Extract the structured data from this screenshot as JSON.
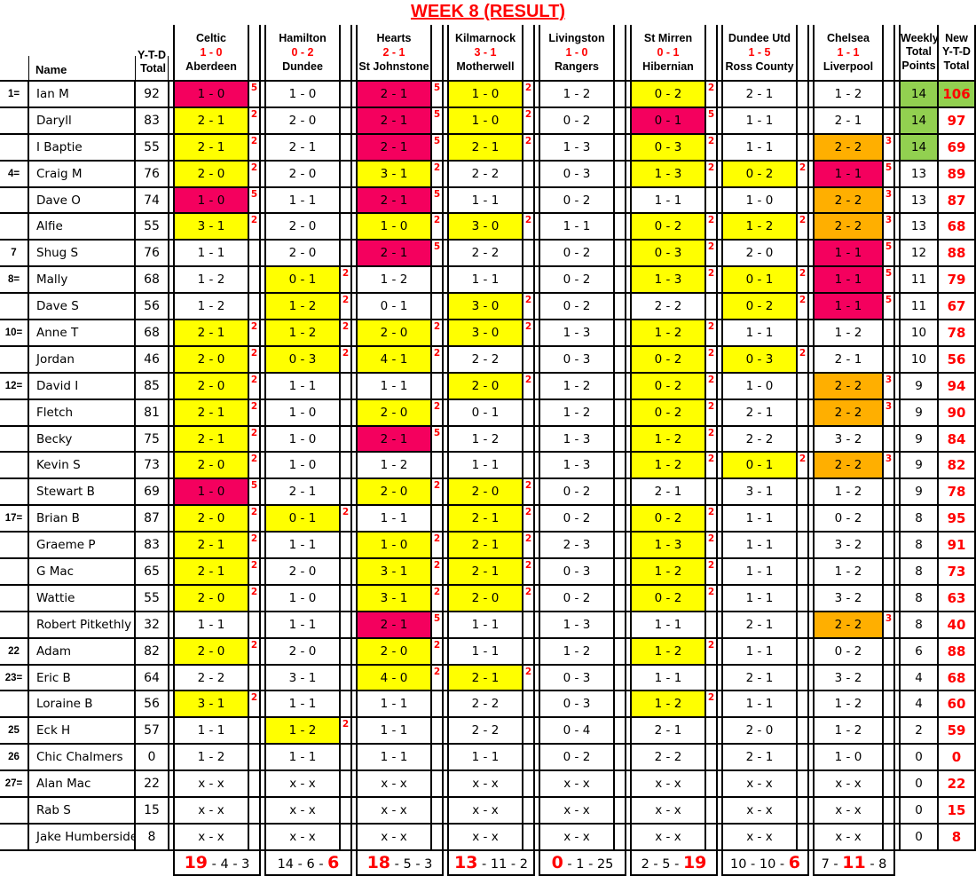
{
  "title": "WEEK 8 (RESULT)",
  "colors": {
    "pink": "#F4005E",
    "yellow": "#FFFF00",
    "orange": "#FFAF00",
    "green": "#92D050",
    "red": "#FF0000",
    "grid": "#000000"
  },
  "points_legend": {
    "exact_score": 5,
    "correct_draw": 3,
    "correct_result": 2
  },
  "header": {
    "name_label": "Name",
    "ytd": [
      "Y-T-D",
      "Total"
    ],
    "weekly": [
      "Weekly",
      "Total",
      "Points"
    ],
    "new_ytd": [
      "New",
      "Y-T-D",
      "Total"
    ]
  },
  "matches": [
    {
      "home": "Celtic",
      "score": "1 - 0",
      "away": "Aberdeen",
      "totals": [
        "19",
        "4",
        "3"
      ],
      "highlight": 0
    },
    {
      "home": "Hamilton",
      "score": "0 - 2",
      "away": "Dundee",
      "totals": [
        "14",
        "6",
        "6"
      ],
      "highlight": 2
    },
    {
      "home": "Hearts",
      "score": "2 - 1",
      "away": "St Johnstone",
      "totals": [
        "18",
        "5",
        "3"
      ],
      "highlight": 0
    },
    {
      "home": "Kilmarnock",
      "score": "3 - 1",
      "away": "Motherwell",
      "totals": [
        "13",
        "11",
        "2"
      ],
      "highlight": 0
    },
    {
      "home": "Livingston",
      "score": "1 - 0",
      "away": "Rangers",
      "totals": [
        "0",
        "1",
        "25"
      ],
      "highlight": 0
    },
    {
      "home": "St Mirren",
      "score": "0 - 1",
      "away": "Hibernian",
      "totals": [
        "2",
        "5",
        "19"
      ],
      "highlight": 2
    },
    {
      "home": "Dundee Utd",
      "score": "1 - 5",
      "away": "Ross County",
      "totals": [
        "10",
        "10",
        "6"
      ],
      "highlight": 2
    },
    {
      "home": "Chelsea",
      "score": "1 - 1",
      "away": "Liverpool",
      "totals": [
        "7",
        "11",
        "8"
      ],
      "highlight": 1
    }
  ],
  "players": [
    {
      "rank": "1=",
      "name": "Ian M",
      "ytd": 92,
      "predictions": [
        [
          "1 - 0",
          "pink",
          5
        ],
        [
          "1 - 0"
        ],
        [
          "2 - 1",
          "pink",
          5
        ],
        [
          "1 - 0",
          "yellow",
          2
        ],
        [
          "1 - 2"
        ],
        [
          "0 - 2",
          "yellow",
          2
        ],
        [
          "2 - 1"
        ],
        [
          "1 - 2"
        ]
      ],
      "weekly": 14,
      "weekly_green": true,
      "new_ytd": 106,
      "new_green": true
    },
    {
      "rank": "",
      "name": "Daryll",
      "ytd": 83,
      "predictions": [
        [
          "2 - 1",
          "yellow",
          2
        ],
        [
          "2 - 0"
        ],
        [
          "2 - 1",
          "pink",
          5
        ],
        [
          "1 - 0",
          "yellow",
          2
        ],
        [
          "0 - 2"
        ],
        [
          "0 - 1",
          "pink",
          5
        ],
        [
          "1 - 1"
        ],
        [
          "2 - 1"
        ]
      ],
      "weekly": 14,
      "weekly_green": true,
      "new_ytd": 97,
      "new_green": false
    },
    {
      "rank": "",
      "name": "I Baptie",
      "ytd": 55,
      "predictions": [
        [
          "2 - 1",
          "yellow",
          2
        ],
        [
          "2 - 1"
        ],
        [
          "2 - 1",
          "pink",
          5
        ],
        [
          "2 - 1",
          "yellow",
          2
        ],
        [
          "1 - 3"
        ],
        [
          "0 - 3",
          "yellow",
          2
        ],
        [
          "1 - 1"
        ],
        [
          "2 - 2",
          "orange",
          3
        ]
      ],
      "weekly": 14,
      "weekly_green": true,
      "new_ytd": 69,
      "new_green": false
    },
    {
      "rank": "4=",
      "name": "Craig M",
      "ytd": 76,
      "predictions": [
        [
          "2 - 0",
          "yellow",
          2
        ],
        [
          "2 - 0"
        ],
        [
          "3 - 1",
          "yellow",
          2
        ],
        [
          "2 - 2"
        ],
        [
          "0 - 3"
        ],
        [
          "1 - 3",
          "yellow",
          2
        ],
        [
          "0 - 2",
          "yellow",
          2
        ],
        [
          "1 - 1",
          "pink",
          5
        ]
      ],
      "weekly": 13,
      "weekly_green": false,
      "new_ytd": 89,
      "new_green": false
    },
    {
      "rank": "",
      "name": "Dave O",
      "ytd": 74,
      "predictions": [
        [
          "1 - 0",
          "pink",
          5
        ],
        [
          "1 - 1"
        ],
        [
          "2 - 1",
          "pink",
          5
        ],
        [
          "1 - 1"
        ],
        [
          "0 - 2"
        ],
        [
          "1 - 1"
        ],
        [
          "1 - 0"
        ],
        [
          "2 - 2",
          "orange",
          3
        ]
      ],
      "weekly": 13,
      "weekly_green": false,
      "new_ytd": 87,
      "new_green": false
    },
    {
      "rank": "",
      "name": "Alfie",
      "ytd": 55,
      "predictions": [
        [
          "3 - 1",
          "yellow",
          2
        ],
        [
          "2 - 0"
        ],
        [
          "1 - 0",
          "yellow",
          2
        ],
        [
          "3 - 0",
          "yellow",
          2
        ],
        [
          "1 - 1"
        ],
        [
          "0 - 2",
          "yellow",
          2
        ],
        [
          "1 - 2",
          "yellow",
          2
        ],
        [
          "2 - 2",
          "orange",
          3
        ]
      ],
      "weekly": 13,
      "weekly_green": false,
      "new_ytd": 68,
      "new_green": false
    },
    {
      "rank": "7",
      "name": "Shug S",
      "ytd": 76,
      "predictions": [
        [
          "1 - 1"
        ],
        [
          "2 - 0"
        ],
        [
          "2 - 1",
          "pink",
          5
        ],
        [
          "2 - 2"
        ],
        [
          "0 - 2"
        ],
        [
          "0 - 3",
          "yellow",
          2
        ],
        [
          "2 - 0"
        ],
        [
          "1 - 1",
          "pink",
          5
        ]
      ],
      "weekly": 12,
      "weekly_green": false,
      "new_ytd": 88,
      "new_green": false
    },
    {
      "rank": "8=",
      "name": "Mally",
      "ytd": 68,
      "predictions": [
        [
          "1 - 2"
        ],
        [
          "0 - 1",
          "yellow",
          2
        ],
        [
          "1 - 2"
        ],
        [
          "1 - 1"
        ],
        [
          "0 - 2"
        ],
        [
          "1 - 3",
          "yellow",
          2
        ],
        [
          "0 - 1",
          "yellow",
          2
        ],
        [
          "1 - 1",
          "pink",
          5
        ]
      ],
      "weekly": 11,
      "weekly_green": false,
      "new_ytd": 79,
      "new_green": false
    },
    {
      "rank": "",
      "name": "Dave S",
      "ytd": 56,
      "predictions": [
        [
          "1 - 2"
        ],
        [
          "1 - 2",
          "yellow",
          2
        ],
        [
          "0 - 1"
        ],
        [
          "3 - 0",
          "yellow",
          2
        ],
        [
          "0 - 2"
        ],
        [
          "2 - 2"
        ],
        [
          "0 - 2",
          "yellow",
          2
        ],
        [
          "1 - 1",
          "pink",
          5
        ]
      ],
      "weekly": 11,
      "weekly_green": false,
      "new_ytd": 67,
      "new_green": false
    },
    {
      "rank": "10=",
      "name": "Anne T",
      "ytd": 68,
      "predictions": [
        [
          "2 - 1",
          "yellow",
          2
        ],
        [
          "1 - 2",
          "yellow",
          2
        ],
        [
          "2 - 0",
          "yellow",
          2
        ],
        [
          "3 - 0",
          "yellow",
          2
        ],
        [
          "1 - 3"
        ],
        [
          "1 - 2",
          "yellow",
          2
        ],
        [
          "1 - 1"
        ],
        [
          "1 - 2"
        ]
      ],
      "weekly": 10,
      "weekly_green": false,
      "new_ytd": 78,
      "new_green": false
    },
    {
      "rank": "",
      "name": "Jordan",
      "ytd": 46,
      "predictions": [
        [
          "2 - 0",
          "yellow",
          2
        ],
        [
          "0 - 3",
          "yellow",
          2
        ],
        [
          "4 - 1",
          "yellow",
          2
        ],
        [
          "2 - 2"
        ],
        [
          "0 - 3"
        ],
        [
          "0 - 2",
          "yellow",
          2
        ],
        [
          "0 - 3",
          "yellow",
          2
        ],
        [
          "2 - 1"
        ]
      ],
      "weekly": 10,
      "weekly_green": false,
      "new_ytd": 56,
      "new_green": false
    },
    {
      "rank": "12=",
      "name": "David I",
      "ytd": 85,
      "predictions": [
        [
          "2 - 0",
          "yellow",
          2
        ],
        [
          "1 - 1"
        ],
        [
          "1 - 1"
        ],
        [
          "2 - 0",
          "yellow",
          2
        ],
        [
          "1 - 2"
        ],
        [
          "0 - 2",
          "yellow",
          2
        ],
        [
          "1 - 0"
        ],
        [
          "2 - 2",
          "orange",
          3
        ]
      ],
      "weekly": 9,
      "weekly_green": false,
      "new_ytd": 94,
      "new_green": false
    },
    {
      "rank": "",
      "name": "Fletch",
      "ytd": 81,
      "predictions": [
        [
          "2 - 1",
          "yellow",
          2
        ],
        [
          "1 - 0"
        ],
        [
          "2 - 0",
          "yellow",
          2
        ],
        [
          "0 - 1"
        ],
        [
          "1 - 2"
        ],
        [
          "0 - 2",
          "yellow",
          2
        ],
        [
          "2 - 1"
        ],
        [
          "2 - 2",
          "orange",
          3
        ]
      ],
      "weekly": 9,
      "weekly_green": false,
      "new_ytd": 90,
      "new_green": false
    },
    {
      "rank": "",
      "name": "Becky",
      "ytd": 75,
      "predictions": [
        [
          "2 - 1",
          "yellow",
          2
        ],
        [
          "1 - 0"
        ],
        [
          "2 - 1",
          "pink",
          5
        ],
        [
          "1 - 2"
        ],
        [
          "1 - 3"
        ],
        [
          "1 - 2",
          "yellow",
          2
        ],
        [
          "2 - 2"
        ],
        [
          "3 - 2"
        ]
      ],
      "weekly": 9,
      "weekly_green": false,
      "new_ytd": 84,
      "new_green": false
    },
    {
      "rank": "",
      "name": "Kevin S",
      "ytd": 73,
      "predictions": [
        [
          "2 - 0",
          "yellow",
          2
        ],
        [
          "1 - 0"
        ],
        [
          "1 - 2"
        ],
        [
          "1 - 1"
        ],
        [
          "1 - 3"
        ],
        [
          "1 - 2",
          "yellow",
          2
        ],
        [
          "0 - 1",
          "yellow",
          2
        ],
        [
          "2 - 2",
          "orange",
          3
        ]
      ],
      "weekly": 9,
      "weekly_green": false,
      "new_ytd": 82,
      "new_green": false
    },
    {
      "rank": "",
      "name": "Stewart B",
      "ytd": 69,
      "predictions": [
        [
          "1 - 0",
          "pink",
          5
        ],
        [
          "2 - 1"
        ],
        [
          "2 - 0",
          "yellow",
          2
        ],
        [
          "2 - 0",
          "yellow",
          2
        ],
        [
          "0 - 2"
        ],
        [
          "2 - 1"
        ],
        [
          "3 - 1"
        ],
        [
          "1 - 2"
        ]
      ],
      "weekly": 9,
      "weekly_green": false,
      "new_ytd": 78,
      "new_green": false
    },
    {
      "rank": "17=",
      "name": "Brian B",
      "ytd": 87,
      "predictions": [
        [
          "2 - 0",
          "yellow",
          2
        ],
        [
          "0 - 1",
          "yellow",
          2
        ],
        [
          "1 - 1"
        ],
        [
          "2 - 1",
          "yellow",
          2
        ],
        [
          "0 - 2"
        ],
        [
          "0 - 2",
          "yellow",
          2
        ],
        [
          "1 - 1"
        ],
        [
          "0 - 2"
        ]
      ],
      "weekly": 8,
      "weekly_green": false,
      "new_ytd": 95,
      "new_green": false
    },
    {
      "rank": "",
      "name": "Graeme P",
      "ytd": 83,
      "predictions": [
        [
          "2 - 1",
          "yellow",
          2
        ],
        [
          "1 - 1"
        ],
        [
          "1 - 0",
          "yellow",
          2
        ],
        [
          "2 - 1",
          "yellow",
          2
        ],
        [
          "2 - 3"
        ],
        [
          "1 - 3",
          "yellow",
          2
        ],
        [
          "1 - 1"
        ],
        [
          "3 - 2"
        ]
      ],
      "weekly": 8,
      "weekly_green": false,
      "new_ytd": 91,
      "new_green": false
    },
    {
      "rank": "",
      "name": "G Mac",
      "ytd": 65,
      "predictions": [
        [
          "2 - 1",
          "yellow",
          2
        ],
        [
          "2 - 0"
        ],
        [
          "3 - 1",
          "yellow",
          2
        ],
        [
          "2 - 1",
          "yellow",
          2
        ],
        [
          "0 - 3"
        ],
        [
          "1 - 2",
          "yellow",
          2
        ],
        [
          "1 - 1"
        ],
        [
          "1 - 2"
        ]
      ],
      "weekly": 8,
      "weekly_green": false,
      "new_ytd": 73,
      "new_green": false
    },
    {
      "rank": "",
      "name": "Wattie",
      "ytd": 55,
      "predictions": [
        [
          "2 - 0",
          "yellow",
          2
        ],
        [
          "1 - 0"
        ],
        [
          "3 - 1",
          "yellow",
          2
        ],
        [
          "2 - 0",
          "yellow",
          2
        ],
        [
          "0 - 2"
        ],
        [
          "0 - 2",
          "yellow",
          2
        ],
        [
          "1 - 1"
        ],
        [
          "3 - 2"
        ]
      ],
      "weekly": 8,
      "weekly_green": false,
      "new_ytd": 63,
      "new_green": false
    },
    {
      "rank": "",
      "name": "Robert Pitkethly",
      "ytd": 32,
      "predictions": [
        [
          "1 - 1"
        ],
        [
          "1 - 1"
        ],
        [
          "2 - 1",
          "pink",
          5
        ],
        [
          "1 - 1"
        ],
        [
          "1 - 3"
        ],
        [
          "1 - 1"
        ],
        [
          "2 - 1"
        ],
        [
          "2 - 2",
          "orange",
          3
        ]
      ],
      "weekly": 8,
      "weekly_green": false,
      "new_ytd": 40,
      "new_green": false
    },
    {
      "rank": "22",
      "name": "Adam",
      "ytd": 82,
      "predictions": [
        [
          "2 - 0",
          "yellow",
          2
        ],
        [
          "2 - 0"
        ],
        [
          "2 - 0",
          "yellow",
          2
        ],
        [
          "1 - 1"
        ],
        [
          "1 - 2"
        ],
        [
          "1 - 2",
          "yellow",
          2
        ],
        [
          "1 - 1"
        ],
        [
          "0 - 2"
        ]
      ],
      "weekly": 6,
      "weekly_green": false,
      "new_ytd": 88,
      "new_green": false
    },
    {
      "rank": "23=",
      "name": "Eric B",
      "ytd": 64,
      "predictions": [
        [
          "2 - 2"
        ],
        [
          "3 - 1"
        ],
        [
          "4 - 0",
          "yellow",
          2
        ],
        [
          "2 - 1",
          "yellow",
          2
        ],
        [
          "0 - 3"
        ],
        [
          "1 - 1"
        ],
        [
          "2 - 1"
        ],
        [
          "3 - 2"
        ]
      ],
      "weekly": 4,
      "weekly_green": false,
      "new_ytd": 68,
      "new_green": false
    },
    {
      "rank": "",
      "name": "Loraine B",
      "ytd": 56,
      "predictions": [
        [
          "3 - 1",
          "yellow",
          2
        ],
        [
          "1 - 1"
        ],
        [
          "1 - 1"
        ],
        [
          "2 - 2"
        ],
        [
          "0 - 3"
        ],
        [
          "1 - 2",
          "yellow",
          2
        ],
        [
          "1 - 1"
        ],
        [
          "1 - 2"
        ]
      ],
      "weekly": 4,
      "weekly_green": false,
      "new_ytd": 60,
      "new_green": false
    },
    {
      "rank": "25",
      "name": "Eck H",
      "ytd": 57,
      "predictions": [
        [
          "1 - 1"
        ],
        [
          "1 - 2",
          "yellow",
          2
        ],
        [
          "1 - 1"
        ],
        [
          "2 - 2"
        ],
        [
          "0 - 4"
        ],
        [
          "2 - 1"
        ],
        [
          "2 - 0"
        ],
        [
          "1 - 2"
        ]
      ],
      "weekly": 2,
      "weekly_green": false,
      "new_ytd": 59,
      "new_green": false
    },
    {
      "rank": "26",
      "name": "Chic Chalmers",
      "ytd": 0,
      "predictions": [
        [
          "1 - 2"
        ],
        [
          "1 - 1"
        ],
        [
          "1 - 1"
        ],
        [
          "1 - 1"
        ],
        [
          "0 - 2"
        ],
        [
          "2 - 2"
        ],
        [
          "2 - 1"
        ],
        [
          "1 - 0"
        ]
      ],
      "weekly": 0,
      "weekly_green": false,
      "new_ytd": 0,
      "new_green": false
    },
    {
      "rank": "27=",
      "name": "Alan Mac",
      "ytd": 22,
      "predictions": [
        [
          "x - x"
        ],
        [
          "x - x"
        ],
        [
          "x - x"
        ],
        [
          "x - x"
        ],
        [
          "x - x"
        ],
        [
          "x - x"
        ],
        [
          "x - x"
        ],
        [
          "x - x"
        ]
      ],
      "weekly": 0,
      "weekly_green": false,
      "new_ytd": 22,
      "new_green": false
    },
    {
      "rank": "",
      "name": "Rab S",
      "ytd": 15,
      "predictions": [
        [
          "x - x"
        ],
        [
          "x - x"
        ],
        [
          "x - x"
        ],
        [
          "x - x"
        ],
        [
          "x - x"
        ],
        [
          "x - x"
        ],
        [
          "x - x"
        ],
        [
          "x - x"
        ]
      ],
      "weekly": 0,
      "weekly_green": false,
      "new_ytd": 15,
      "new_green": false
    },
    {
      "rank": "",
      "name": "Jake Humberside",
      "ytd": 8,
      "predictions": [
        [
          "x - x"
        ],
        [
          "x - x"
        ],
        [
          "x - x"
        ],
        [
          "x - x"
        ],
        [
          "x - x"
        ],
        [
          "x - x"
        ],
        [
          "x - x"
        ],
        [
          "x - x"
        ]
      ],
      "weekly": 0,
      "weekly_green": false,
      "new_ytd": 8,
      "new_green": false
    }
  ]
}
